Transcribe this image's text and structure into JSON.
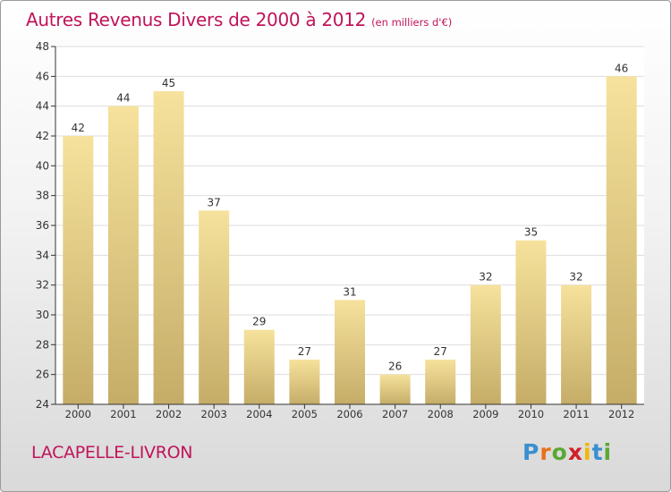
{
  "header": {
    "title": "Autres Revenus Divers de 2000 à 2012",
    "unit": "(en milliers d'€)"
  },
  "footer": {
    "commune": "LACAPELLE-LIVRON",
    "logo_letters": [
      "P",
      "r",
      "o",
      "x",
      "i",
      "t",
      "i"
    ],
    "logo_colors": [
      "#3a8fd0",
      "#e8701a",
      "#5aa832",
      "#d0202a",
      "#f0b800",
      "#3a8fd0",
      "#5aa832"
    ]
  },
  "colors": {
    "bar_light": "#f6e29c",
    "bar_dark": "#c5ad68",
    "axis": "#333333",
    "grid": "#dddddd",
    "title": "#c0145a"
  },
  "chart_data": {
    "type": "bar",
    "title": "Autres Revenus Divers de 2000 à 2012",
    "subtitle": "(en milliers d'€)",
    "xlabel": "",
    "ylabel": "",
    "categories": [
      "2000",
      "2001",
      "2002",
      "2003",
      "2004",
      "2005",
      "2006",
      "2007",
      "2008",
      "2009",
      "2010",
      "2011",
      "2012"
    ],
    "values": [
      42,
      44,
      45,
      37,
      29,
      27,
      31,
      26,
      27,
      32,
      35,
      32,
      46
    ],
    "ylim": [
      24,
      48
    ],
    "yticks": [
      24,
      26,
      28,
      30,
      32,
      34,
      36,
      38,
      40,
      42,
      44,
      46,
      48
    ],
    "grid": true,
    "data_labels": true
  }
}
